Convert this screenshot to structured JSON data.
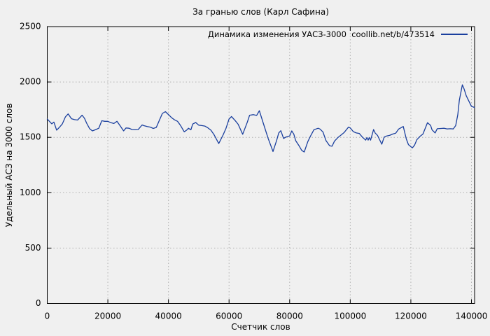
{
  "chart_data": {
    "type": "line",
    "title": "За гранью слов (Карл Сафина)",
    "xlabel": "Счетчик слов",
    "ylabel": "Удельный АСЗ на 3000 слов",
    "xlim": [
      0,
      141000
    ],
    "ylim": [
      0,
      2500
    ],
    "xticks": [
      0,
      20000,
      40000,
      60000,
      80000,
      100000,
      120000,
      140000
    ],
    "yticks": [
      0,
      500,
      1000,
      1500,
      2000,
      2500
    ],
    "grid": true,
    "legend_position": "top-right-inside",
    "colors": {
      "background": "#f0f0f0",
      "border": "#000000",
      "grid": "#b0b0b0",
      "line": "#1a3f9e",
      "text": "#000000"
    },
    "series": [
      {
        "name": "Динамика изменения УАСЗ-3000  coollib.net/b/473514",
        "color": "#1a3f9e",
        "points": [
          [
            0,
            1665
          ],
          [
            1500,
            1622
          ],
          [
            2200,
            1638
          ],
          [
            3100,
            1565
          ],
          [
            4000,
            1590
          ],
          [
            5000,
            1622
          ],
          [
            6000,
            1685
          ],
          [
            6900,
            1712
          ],
          [
            8000,
            1668
          ],
          [
            9000,
            1660
          ],
          [
            10000,
            1656
          ],
          [
            11500,
            1700
          ],
          [
            12300,
            1672
          ],
          [
            13000,
            1628
          ],
          [
            14000,
            1578
          ],
          [
            14900,
            1558
          ],
          [
            16000,
            1570
          ],
          [
            17000,
            1582
          ],
          [
            18000,
            1650
          ],
          [
            19000,
            1645
          ],
          [
            20000,
            1645
          ],
          [
            21000,
            1632
          ],
          [
            22000,
            1625
          ],
          [
            23000,
            1645
          ],
          [
            24000,
            1606
          ],
          [
            25200,
            1558
          ],
          [
            26000,
            1585
          ],
          [
            27000,
            1582
          ],
          [
            28000,
            1570
          ],
          [
            29000,
            1568
          ],
          [
            30000,
            1570
          ],
          [
            31300,
            1612
          ],
          [
            32000,
            1605
          ],
          [
            33000,
            1598
          ],
          [
            34000,
            1592
          ],
          [
            35000,
            1580
          ],
          [
            36000,
            1590
          ],
          [
            37000,
            1655
          ],
          [
            38000,
            1716
          ],
          [
            39000,
            1732
          ],
          [
            40000,
            1706
          ],
          [
            41000,
            1678
          ],
          [
            42000,
            1658
          ],
          [
            43000,
            1645
          ],
          [
            44000,
            1606
          ],
          [
            45200,
            1550
          ],
          [
            46000,
            1565
          ],
          [
            46600,
            1582
          ],
          [
            47400,
            1568
          ],
          [
            48000,
            1620
          ],
          [
            49000,
            1634
          ],
          [
            50000,
            1610
          ],
          [
            51000,
            1606
          ],
          [
            52000,
            1602
          ],
          [
            53000,
            1586
          ],
          [
            54000,
            1565
          ],
          [
            55000,
            1526
          ],
          [
            56600,
            1444
          ],
          [
            58000,
            1520
          ],
          [
            59000,
            1582
          ],
          [
            60000,
            1665
          ],
          [
            60800,
            1688
          ],
          [
            62000,
            1652
          ],
          [
            63000,
            1618
          ],
          [
            64500,
            1528
          ],
          [
            66000,
            1635
          ],
          [
            66800,
            1700
          ],
          [
            68000,
            1705
          ],
          [
            69100,
            1698
          ],
          [
            70000,
            1740
          ],
          [
            71400,
            1618
          ],
          [
            72900,
            1490
          ],
          [
            74500,
            1372
          ],
          [
            75700,
            1472
          ],
          [
            76400,
            1540
          ],
          [
            77100,
            1560
          ],
          [
            78000,
            1490
          ],
          [
            78700,
            1502
          ],
          [
            80000,
            1512
          ],
          [
            80700,
            1558
          ],
          [
            81400,
            1528
          ],
          [
            82000,
            1470
          ],
          [
            83000,
            1428
          ],
          [
            84000,
            1382
          ],
          [
            84800,
            1368
          ],
          [
            86000,
            1462
          ],
          [
            87000,
            1518
          ],
          [
            88000,
            1568
          ],
          [
            89400,
            1582
          ],
          [
            90000,
            1575
          ],
          [
            91000,
            1548
          ],
          [
            92000,
            1470
          ],
          [
            93200,
            1424
          ],
          [
            94000,
            1420
          ],
          [
            94800,
            1465
          ],
          [
            96000,
            1500
          ],
          [
            97000,
            1522
          ],
          [
            98000,
            1544
          ],
          [
            99400,
            1592
          ],
          [
            100000,
            1585
          ],
          [
            101000,
            1552
          ],
          [
            102000,
            1540
          ],
          [
            103000,
            1535
          ],
          [
            104000,
            1502
          ],
          [
            105100,
            1475
          ],
          [
            105500,
            1498
          ],
          [
            105900,
            1475
          ],
          [
            106300,
            1498
          ],
          [
            106700,
            1475
          ],
          [
            107700,
            1570
          ],
          [
            108200,
            1540
          ],
          [
            109000,
            1518
          ],
          [
            110400,
            1438
          ],
          [
            111200,
            1502
          ],
          [
            112000,
            1512
          ],
          [
            113000,
            1518
          ],
          [
            114000,
            1530
          ],
          [
            115000,
            1538
          ],
          [
            116000,
            1575
          ],
          [
            117500,
            1598
          ],
          [
            118500,
            1486
          ],
          [
            119200,
            1434
          ],
          [
            120500,
            1405
          ],
          [
            121200,
            1428
          ],
          [
            122000,
            1480
          ],
          [
            123000,
            1508
          ],
          [
            124000,
            1530
          ],
          [
            125500,
            1632
          ],
          [
            126500,
            1608
          ],
          [
            127000,
            1568
          ],
          [
            128000,
            1540
          ],
          [
            128700,
            1578
          ],
          [
            130000,
            1580
          ],
          [
            131000,
            1582
          ],
          [
            132000,
            1576
          ],
          [
            133000,
            1578
          ],
          [
            134000,
            1576
          ],
          [
            134800,
            1606
          ],
          [
            135500,
            1705
          ],
          [
            136000,
            1835
          ],
          [
            137000,
            1975
          ],
          [
            137600,
            1935
          ],
          [
            138300,
            1875
          ],
          [
            139000,
            1835
          ],
          [
            140000,
            1780
          ],
          [
            141000,
            1770
          ]
        ]
      }
    ]
  }
}
